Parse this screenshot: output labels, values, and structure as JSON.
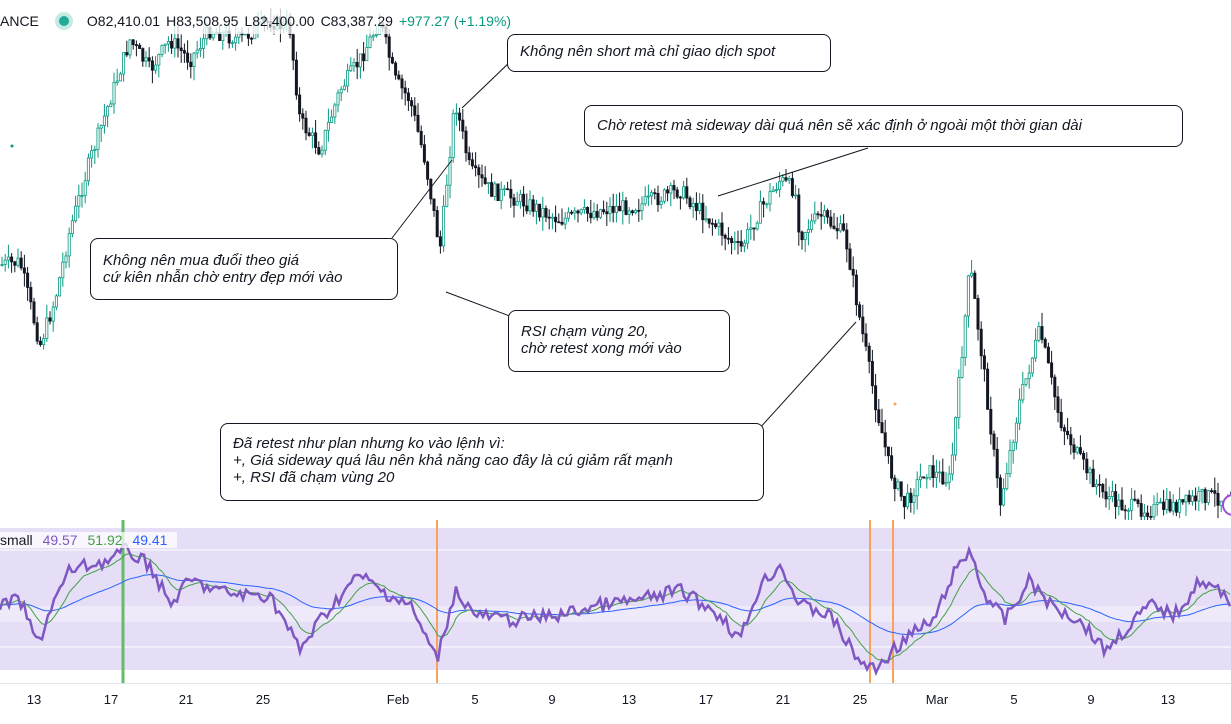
{
  "legend": {
    "symbol": "ANCE",
    "open": "O82,410.01",
    "high": "H83,508.95",
    "low": "L82,400.00",
    "close": "C83,387.29",
    "change": "+977.27 (+1.19%)"
  },
  "rsi_legend": {
    "name": "small",
    "value1": "49.57",
    "value2": "51.92",
    "value3": "49.41"
  },
  "colors": {
    "up": "#089981",
    "down": "#131722",
    "rsi_line": "#7e57c2",
    "rsi_ma": "#43a047",
    "rsi_ma2": "#2962ff",
    "band": "#e8e0f7",
    "vline_orange": "#f7a35c",
    "vline_green": "#66bb6a"
  },
  "annotations": [
    {
      "lines": [
        "Không nên short mà chỉ giao dịch spot"
      ]
    },
    {
      "lines": [
        "Chờ retest mà sideway dài quá nên sẽ xác định ở ngoài một thời gian dài"
      ]
    },
    {
      "lines": [
        "Không nên mua đuổi theo giá",
        "cứ kiên nhẫn chờ entry đẹp mới vào"
      ]
    },
    {
      "lines": [
        "RSI chạm vùng 20,",
        "chờ retest xong mới vào"
      ]
    },
    {
      "lines": [
        "Đã retest như plan nhưng ko vào lệnh vì:",
        "+, Giá sideway quá lâu nên khả năng cao đây là cú giảm rất mạnh",
        "+, RSI đã chạm vùng 20"
      ]
    }
  ],
  "time_axis": [
    "13",
    "17",
    "21",
    "25",
    "Feb",
    "5",
    "9",
    "13",
    "17",
    "21",
    "25",
    "Mar",
    "5",
    "9",
    "13"
  ]
}
